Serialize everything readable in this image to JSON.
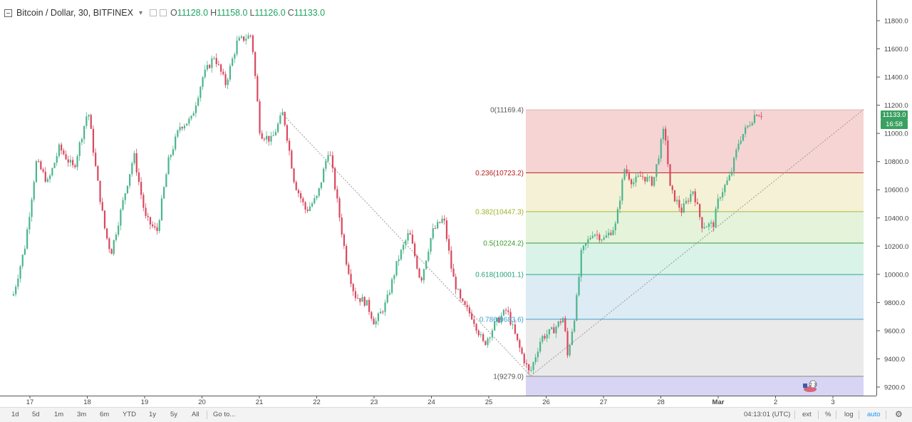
{
  "legend": {
    "title": "Bitcoin / Dollar, 30, BITFINEX",
    "o_label": "O",
    "o_value": "11128.0",
    "h_label": "H",
    "h_value": "11158.0",
    "l_label": "L",
    "l_value": "11126.0",
    "c_label": "C",
    "c_value": "11133.0"
  },
  "price_tags": {
    "last_price": "11133.0",
    "countdown": "16:58"
  },
  "toolbar": {
    "ranges": [
      "1d",
      "5d",
      "1m",
      "3m",
      "6m",
      "YTD",
      "1y",
      "5y",
      "All"
    ],
    "goto": "Go to...",
    "time": "04:13:01 (UTC)",
    "ext": "ext",
    "percent": "%",
    "log": "log",
    "auto": "auto"
  },
  "event_badge": "2 3",
  "colors": {
    "up": "#4bb58c",
    "down": "#d9485f",
    "accent": "#2196f3",
    "price_tag": "#3aa061"
  },
  "chart_data": {
    "type": "candlestick",
    "title": "Bitcoin / Dollar, 30, BITFINEX",
    "x_tick_labels": [
      "17",
      "18",
      "19",
      "20",
      "21",
      "22",
      "23",
      "24",
      "25",
      "26",
      "27",
      "28",
      "Mar",
      "2",
      "3"
    ],
    "y_tick_values": [
      9200,
      9400,
      9600,
      9800,
      10000,
      10200,
      10400,
      10600,
      10800,
      11000,
      11200,
      11400,
      11600,
      11800
    ],
    "y_tick_labels": [
      "9200.0",
      "9400.0",
      "9600.0",
      "9800.0",
      "10000.0",
      "10200.0",
      "10400.0",
      "10600.0",
      "10800.0",
      "11000.0",
      "11200.0",
      "11400.0",
      "11600.0",
      "11800.0"
    ],
    "ylim": [
      9100,
      11900
    ],
    "close_path": [
      [
        16.7,
        9860
      ],
      [
        16.9,
        10200
      ],
      [
        17.1,
        10800
      ],
      [
        17.3,
        10650
      ],
      [
        17.5,
        10900
      ],
      [
        17.75,
        10750
      ],
      [
        18.0,
        11170
      ],
      [
        18.15,
        10700
      ],
      [
        18.3,
        10300
      ],
      [
        18.4,
        10150
      ],
      [
        18.6,
        10500
      ],
      [
        18.8,
        10850
      ],
      [
        19.0,
        10400
      ],
      [
        19.2,
        10300
      ],
      [
        19.4,
        10800
      ],
      [
        19.6,
        11050
      ],
      [
        19.8,
        11100
      ],
      [
        20.0,
        11400
      ],
      [
        20.2,
        11550
      ],
      [
        20.4,
        11350
      ],
      [
        20.6,
        11650
      ],
      [
        20.85,
        11700
      ],
      [
        21.0,
        11000
      ],
      [
        21.2,
        10950
      ],
      [
        21.4,
        11150
      ],
      [
        21.6,
        10650
      ],
      [
        21.8,
        10450
      ],
      [
        22.0,
        10550
      ],
      [
        22.2,
        10900
      ],
      [
        22.35,
        10500
      ],
      [
        22.5,
        10100
      ],
      [
        22.65,
        9850
      ],
      [
        22.85,
        9800
      ],
      [
        23.0,
        9650
      ],
      [
        23.2,
        9800
      ],
      [
        23.4,
        10100
      ],
      [
        23.6,
        10300
      ],
      [
        23.8,
        9950
      ],
      [
        24.0,
        10300
      ],
      [
        24.2,
        10400
      ],
      [
        24.35,
        10000
      ],
      [
        24.5,
        9800
      ],
      [
        24.7,
        9700
      ],
      [
        24.9,
        9500
      ],
      [
        25.1,
        9650
      ],
      [
        25.3,
        9750
      ],
      [
        25.5,
        9500
      ],
      [
        25.7,
        9290
      ],
      [
        25.9,
        9550
      ],
      [
        26.1,
        9600
      ],
      [
        26.3,
        9700
      ],
      [
        26.35,
        9400
      ],
      [
        26.5,
        9750
      ],
      [
        26.6,
        10150
      ],
      [
        26.8,
        10300
      ],
      [
        27.0,
        10250
      ],
      [
        27.2,
        10350
      ],
      [
        27.35,
        10750
      ],
      [
        27.5,
        10650
      ],
      [
        27.65,
        10700
      ],
      [
        27.85,
        10650
      ],
      [
        28.05,
        11050
      ],
      [
        28.15,
        10600
      ],
      [
        28.35,
        10450
      ],
      [
        28.55,
        10600
      ],
      [
        28.7,
        10350
      ],
      [
        28.9,
        10350
      ],
      [
        29.0,
        10550
      ],
      [
        29.2,
        10700
      ],
      [
        29.35,
        10950
      ],
      [
        29.5,
        11050
      ],
      [
        29.65,
        11150
      ],
      [
        29.75,
        11133
      ]
    ],
    "fib_retracement": {
      "high": 11169.4,
      "low": 9279.0,
      "levels": [
        {
          "ratio_label": "0",
          "price": "11169.4",
          "text": "0(11169.4)"
        },
        {
          "ratio_label": "0.236",
          "price": "10723.2",
          "text": "0.236(10723.2)"
        },
        {
          "ratio_label": "0.382",
          "price": "10447.3",
          "text": "0.382(10447.3)"
        },
        {
          "ratio_label": "0.5",
          "price": "10224.2",
          "text": "0.5(10224.2)"
        },
        {
          "ratio_label": "0.618",
          "price": "10001.1",
          "text": "0.618(10001.1)"
        },
        {
          "ratio_label": "0.786",
          "price": "9683.6",
          "text": "0.786(9683.6)"
        },
        {
          "ratio_label": "1",
          "price": "9279.0",
          "text": "1(9279.0)"
        }
      ]
    },
    "grid": false,
    "legend_position": "top-left"
  }
}
